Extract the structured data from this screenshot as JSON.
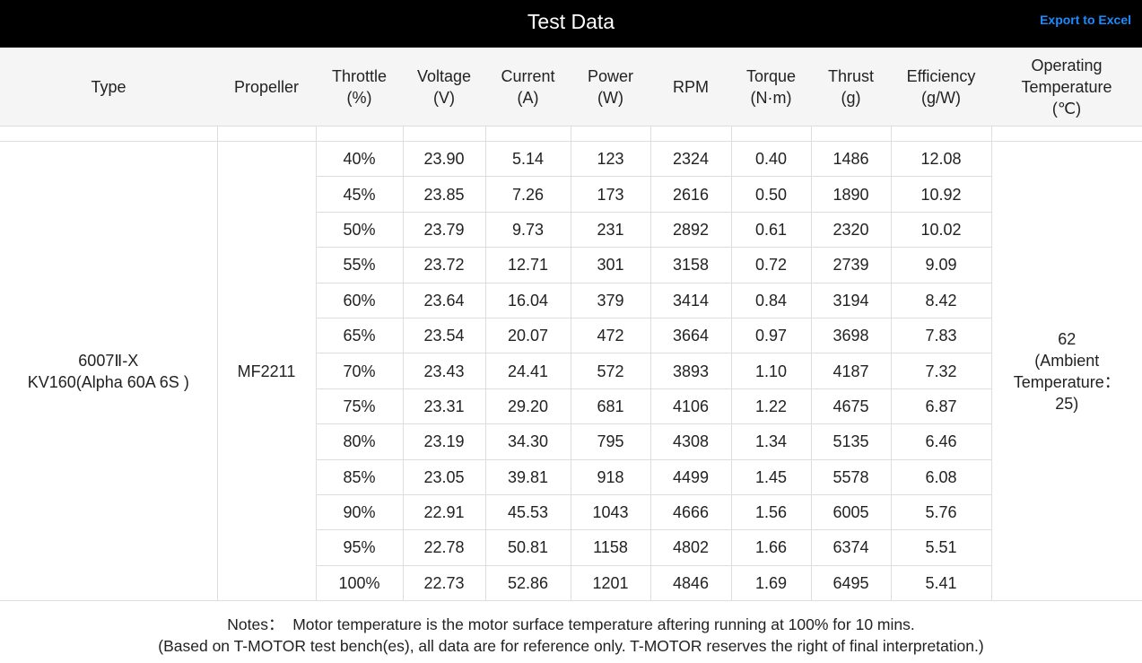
{
  "header": {
    "title": "Test Data",
    "export": "Export to Excel"
  },
  "table": {
    "columns": [
      "Type",
      "Propeller",
      "Throttle\n(%)",
      "Voltage\n(V)",
      "Current\n(A)",
      "Power\n(W)",
      "RPM",
      "Torque\n(N·m)",
      "Thrust\n(g)",
      "Efficiency\n(g/W)",
      "Operating\nTemperature\n(℃)"
    ],
    "type": "6007Ⅱ-X\nKV160(Alpha 60A 6S )",
    "propeller": "MF2211",
    "operating_temperature": "62\n(Ambient\nTemperature：\n25)",
    "rows": [
      [
        "40%",
        "23.90",
        "5.14",
        "123",
        "2324",
        "0.40",
        "1486",
        "12.08"
      ],
      [
        "45%",
        "23.85",
        "7.26",
        "173",
        "2616",
        "0.50",
        "1890",
        "10.92"
      ],
      [
        "50%",
        "23.79",
        "9.73",
        "231",
        "2892",
        "0.61",
        "2320",
        "10.02"
      ],
      [
        "55%",
        "23.72",
        "12.71",
        "301",
        "3158",
        "0.72",
        "2739",
        "9.09"
      ],
      [
        "60%",
        "23.64",
        "16.04",
        "379",
        "3414",
        "0.84",
        "3194",
        "8.42"
      ],
      [
        "65%",
        "23.54",
        "20.07",
        "472",
        "3664",
        "0.97",
        "3698",
        "7.83"
      ],
      [
        "70%",
        "23.43",
        "24.41",
        "572",
        "3893",
        "1.10",
        "4187",
        "7.32"
      ],
      [
        "75%",
        "23.31",
        "29.20",
        "681",
        "4106",
        "1.22",
        "4675",
        "6.87"
      ],
      [
        "80%",
        "23.19",
        "34.30",
        "795",
        "4308",
        "1.34",
        "5135",
        "6.46"
      ],
      [
        "85%",
        "23.05",
        "39.81",
        "918",
        "4499",
        "1.45",
        "5578",
        "6.08"
      ],
      [
        "90%",
        "22.91",
        "45.53",
        "1043",
        "4666",
        "1.56",
        "6005",
        "5.76"
      ],
      [
        "95%",
        "22.78",
        "50.81",
        "1158",
        "4802",
        "1.66",
        "6374",
        "5.51"
      ],
      [
        "100%",
        "22.73",
        "52.86",
        "1201",
        "4846",
        "1.69",
        "6495",
        "5.41"
      ]
    ]
  },
  "notes": [
    "Notes：  Motor temperature is the motor surface temperature aftering running at 100% for 10 mins.",
    "(Based on T-MOTOR test bench(es), all data are for reference only. T-MOTOR reserves the right of final interpretation.)"
  ]
}
